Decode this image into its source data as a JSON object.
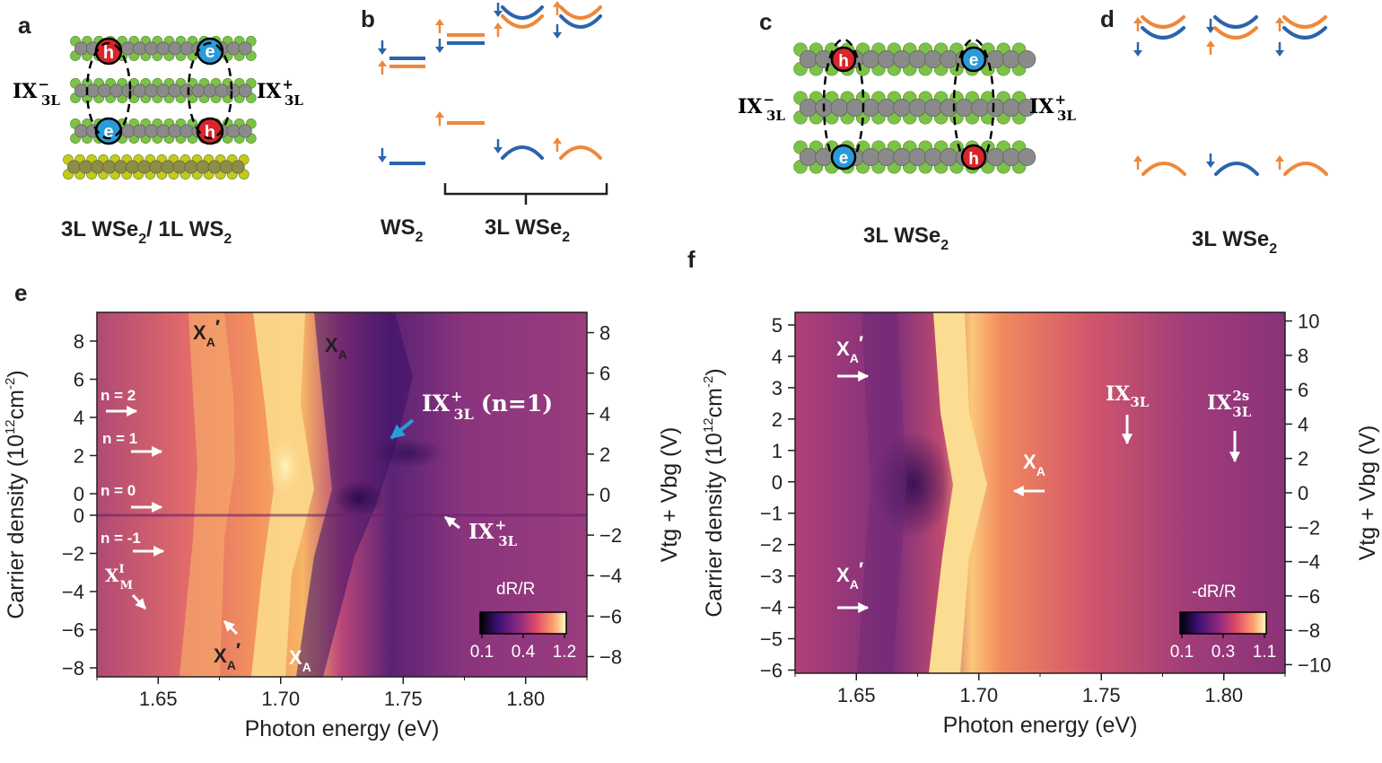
{
  "panel_labels": {
    "a": "a",
    "b": "b",
    "c": "c",
    "d": "d",
    "e": "e",
    "f": "f"
  },
  "captions": {
    "a": {
      "main": "3L WSe",
      "s1": "2",
      "mid": "/ 1L WS",
      "s2": "2"
    },
    "b_ws2": {
      "main": "WS",
      "s1": "2"
    },
    "b_wse2": {
      "main": "3L WSe",
      "s1": "2"
    },
    "c": {
      "main": "3L WSe",
      "s1": "2"
    },
    "d": {
      "main": "3L WSe",
      "s1": "2"
    }
  },
  "carriers": {
    "hole": "h",
    "electron": "e"
  },
  "ix_labels": {
    "minus": {
      "base": "IX",
      "sup": "−",
      "sub": "3L"
    },
    "plus": {
      "base": "IX",
      "sup": "+",
      "sub": "3L"
    }
  },
  "colors": {
    "spin_up": "#f0873a",
    "spin_down": "#2b64ad",
    "hole": "#d8262c",
    "electron": "#2a9bd8",
    "se": "#7cc247",
    "w": "#8a8a8a",
    "s": "#c8c818"
  },
  "chart_data": [
    {
      "type": "heatmap",
      "panel": "e",
      "xlabel": "Photon energy (eV)",
      "ylabel": "Carrier density (10",
      "ylabel_exp": "12",
      "ylabel_unit": "cm",
      "ylabel_unit_exp": "-2",
      "ylabel_end": ")",
      "y2label": "Vtg + Vbg (V)",
      "xlim": [
        1.625,
        1.825
      ],
      "xticks": [
        "1.65",
        "1.70",
        "1.75",
        "1.80"
      ],
      "xtick_values": [
        1.65,
        1.7,
        1.75,
        1.8
      ],
      "yticks_upper": [
        "8",
        "6",
        "4",
        "2",
        "0"
      ],
      "yticks_upper_values": [
        8,
        6,
        4,
        2,
        0
      ],
      "yticks_lower": [
        "0",
        "−2",
        "−4",
        "−6",
        "−8"
      ],
      "yticks_lower_values": [
        0,
        -2,
        -4,
        -6,
        -8
      ],
      "y2ticks": [
        "8",
        "6",
        "4",
        "2",
        "0",
        "−2",
        "−4",
        "−6",
        "−8"
      ],
      "y2tick_values": [
        8,
        6,
        4,
        2,
        0,
        -2,
        -4,
        -6,
        -8
      ],
      "y2lim": [
        -9,
        9
      ],
      "colorbar": {
        "label": "dR/R",
        "ticks": [
          "0.1",
          "0.4",
          "1.2"
        ],
        "tick_values": [
          0.1,
          0.4,
          1.2
        ],
        "range": [
          0.1,
          1.2
        ]
      },
      "annotations": {
        "xa_prime_top": "X",
        "xa_top": "X",
        "sub_a": "A",
        "prime": "′",
        "ix_n1": "IX",
        "ix_n1_tail": "(n=1)",
        "ix_sup": "+",
        "ix_sub": "3L",
        "n2": "n = 2",
        "n1": "n = 1",
        "n0": "n = 0",
        "nm1": "n = -1",
        "xm": "X",
        "xm_sub": "M",
        "xm_sup": "I"
      }
    },
    {
      "type": "heatmap",
      "panel": "f",
      "xlabel": "Photon energy (eV)",
      "ylabel": "Carrier density (10",
      "ylabel_exp": "12",
      "ylabel_unit": "cm",
      "ylabel_unit_exp": "-2",
      "ylabel_end": ")",
      "y2label": "Vtg + Vbg (V)",
      "xlim": [
        1.625,
        1.825
      ],
      "xticks": [
        "1.65",
        "1.70",
        "1.75",
        "1.80"
      ],
      "xtick_values": [
        1.65,
        1.7,
        1.75,
        1.8
      ],
      "yticks": [
        "5",
        "4",
        "3",
        "2",
        "1",
        "0",
        "−1",
        "−2",
        "−3",
        "−4",
        "−5",
        "−6"
      ],
      "ytick_values": [
        5,
        4,
        3,
        2,
        1,
        0,
        -1,
        -2,
        -3,
        -4,
        -5,
        -6
      ],
      "ylim": [
        -6.1,
        5.4
      ],
      "y2ticks": [
        "10",
        "8",
        "6",
        "4",
        "2",
        "0",
        "−2",
        "−4",
        "−6",
        "−8",
        "−10"
      ],
      "y2tick_values": [
        10,
        8,
        6,
        4,
        2,
        0,
        -2,
        -4,
        -6,
        -8,
        -10
      ],
      "y2lim": [
        -10.5,
        10.5
      ],
      "colorbar": {
        "label": "-dR/R",
        "ticks": [
          "0.1",
          "0.3",
          "1.1"
        ],
        "tick_values": [
          0.1,
          0.3,
          1.1
        ],
        "range": [
          0.1,
          1.1
        ]
      },
      "annotations": {
        "x": "X",
        "sub_a": "A",
        "prime": "′",
        "ix": "IX",
        "ix_sub": "3L",
        "ix2s": "IX",
        "ix2s_sup": "2s",
        "ix2s_sub": "3L"
      }
    }
  ]
}
